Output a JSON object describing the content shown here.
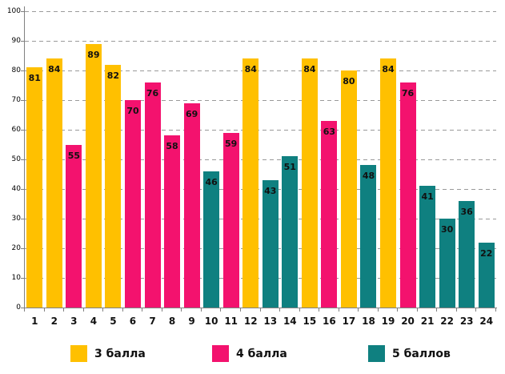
{
  "chart_data": {
    "type": "bar",
    "title": "",
    "xlabel": "",
    "ylabel": "",
    "categories": [
      "1",
      "2",
      "3",
      "4",
      "5",
      "6",
      "7",
      "8",
      "9",
      "10",
      "11",
      "12",
      "13",
      "14",
      "15",
      "16",
      "17",
      "18",
      "19",
      "20",
      "21",
      "22",
      "23",
      "24"
    ],
    "values": [
      81,
      84,
      55,
      89,
      82,
      70,
      76,
      58,
      69,
      46,
      59,
      84,
      43,
      51,
      84,
      63,
      80,
      48,
      84,
      76,
      41,
      30,
      36,
      22
    ],
    "group_index": [
      0,
      0,
      1,
      0,
      0,
      1,
      1,
      1,
      1,
      2,
      1,
      0,
      2,
      2,
      0,
      1,
      0,
      2,
      0,
      1,
      2,
      2,
      2,
      2
    ],
    "legend": [
      {
        "label": "3 балла",
        "color": "#FFC000"
      },
      {
        "label": "4 балла",
        "color": "#F3126E"
      },
      {
        "label": "5 баллов",
        "color": "#0F8080"
      }
    ],
    "ylim": [
      0,
      100
    ],
    "ytick_step": 10,
    "yticks": [
      0,
      10,
      20,
      30,
      40,
      50,
      60,
      70,
      80,
      90,
      100
    ],
    "grid": "horizontal-dashed",
    "legend_position": "bottom"
  },
  "colors": {
    "grid": "#9A9A9A",
    "axis": "#808080",
    "text": "#111111",
    "background": "#FFFFFF"
  }
}
